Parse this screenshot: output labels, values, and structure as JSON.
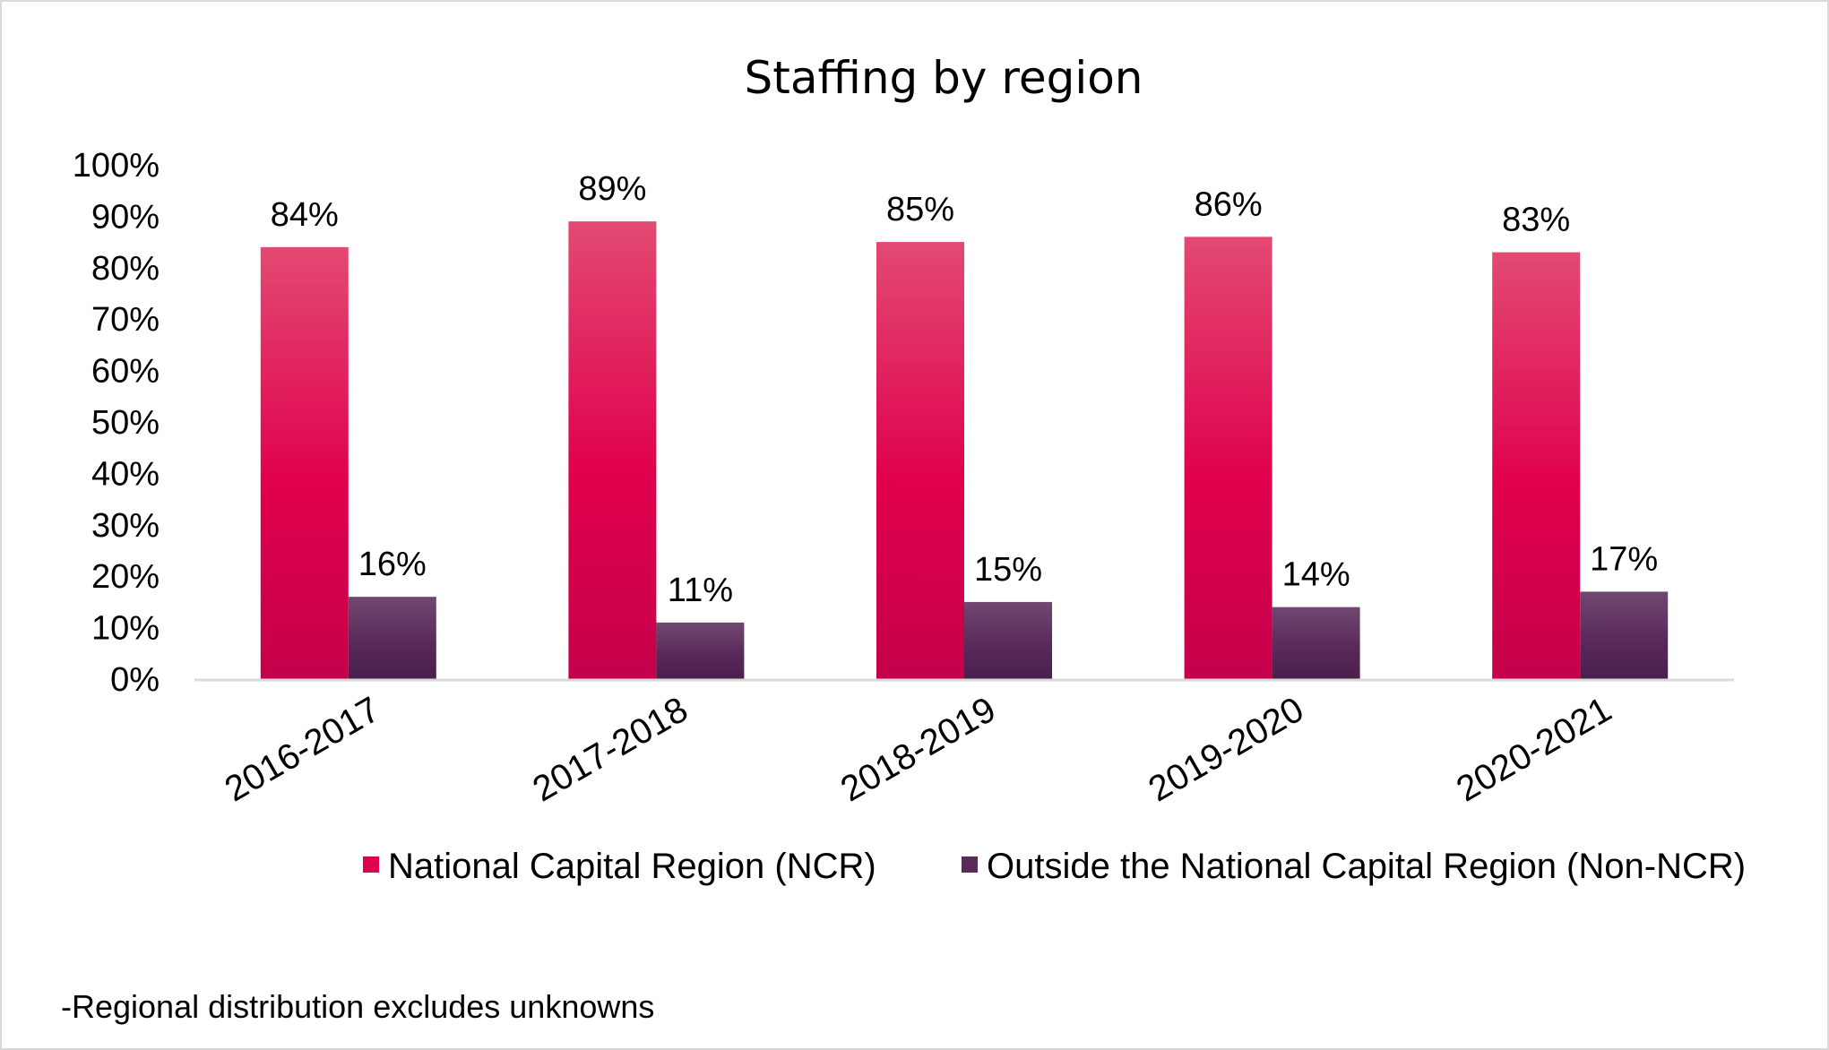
{
  "chart_data": {
    "type": "bar",
    "title": "Staffing by region",
    "xlabel": "",
    "ylabel": "",
    "categories": [
      "2016-2017",
      "2017-2018",
      "2018-2019",
      "2019-2020",
      "2020-2021"
    ],
    "series": [
      {
        "name": "National Capital Region (NCR)",
        "values": [
          84,
          89,
          85,
          86,
          83
        ],
        "data_labels": [
          "84%",
          "89%",
          "85%",
          "86%",
          "83%"
        ],
        "color": "#e0004d",
        "color_light": "#e24a72",
        "color_dark": "#c4004a"
      },
      {
        "name": "Outside the National Capital Region (Non-NCR)",
        "values": [
          16,
          11,
          15,
          14,
          17
        ],
        "data_labels": [
          "16%",
          "11%",
          "15%",
          "14%",
          "17%"
        ],
        "color": "#5a2a5a",
        "color_light": "#704870",
        "color_dark": "#4a1f4c"
      }
    ],
    "ylim": [
      0,
      100
    ],
    "yticks": [
      0,
      10,
      20,
      30,
      40,
      50,
      60,
      70,
      80,
      90,
      100
    ],
    "ytick_labels": [
      "0%",
      "10%",
      "20%",
      "30%",
      "40%",
      "50%",
      "60%",
      "70%",
      "80%",
      "90%",
      "100%"
    ],
    "grid": false,
    "legend_position": "bottom",
    "footnote": "-Regional distribution excludes unknowns"
  }
}
